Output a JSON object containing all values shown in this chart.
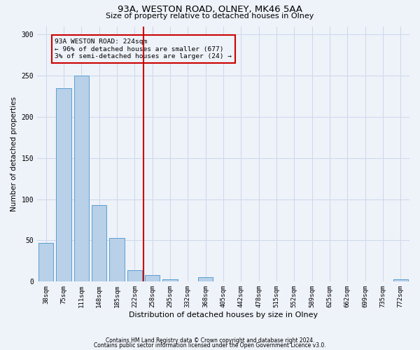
{
  "title": "93A, WESTON ROAD, OLNEY, MK46 5AA",
  "subtitle": "Size of property relative to detached houses in Olney",
  "xlabel": "Distribution of detached houses by size in Olney",
  "ylabel": "Number of detached properties",
  "property_label": "93A WESTON ROAD: 224sqm",
  "stat_line1": "← 96% of detached houses are smaller (677)",
  "stat_line2": "3% of semi-detached houses are larger (24) →",
  "footnote1": "Contains HM Land Registry data © Crown copyright and database right 2024.",
  "footnote2": "Contains public sector information licensed under the Open Government Licence v3.0.",
  "bin_labels": [
    "38sqm",
    "75sqm",
    "111sqm",
    "148sqm",
    "185sqm",
    "222sqm",
    "258sqm",
    "295sqm",
    "332sqm",
    "368sqm",
    "405sqm",
    "442sqm",
    "478sqm",
    "515sqm",
    "552sqm",
    "589sqm",
    "625sqm",
    "662sqm",
    "699sqm",
    "735sqm",
    "772sqm"
  ],
  "bar_heights": [
    47,
    235,
    250,
    93,
    53,
    14,
    8,
    3,
    0,
    5,
    0,
    0,
    0,
    0,
    0,
    0,
    0,
    0,
    0,
    0,
    3
  ],
  "bar_color": "#b8d0e8",
  "bar_edge_color": "#5a9fd4",
  "vline_color": "#cc0000",
  "vline_bin_index": 5,
  "annotation_box_color": "#cc0000",
  "grid_color": "#ccd8ea",
  "background_color": "#eef2f9",
  "ylim": [
    0,
    310
  ],
  "yticks": [
    0,
    50,
    100,
    150,
    200,
    250,
    300
  ],
  "title_fontsize": 9.5,
  "subtitle_fontsize": 8,
  "axis_label_fontsize": 7.5,
  "tick_fontsize": 6.5,
  "annotation_fontsize": 6.8,
  "footnote_fontsize": 5.5
}
